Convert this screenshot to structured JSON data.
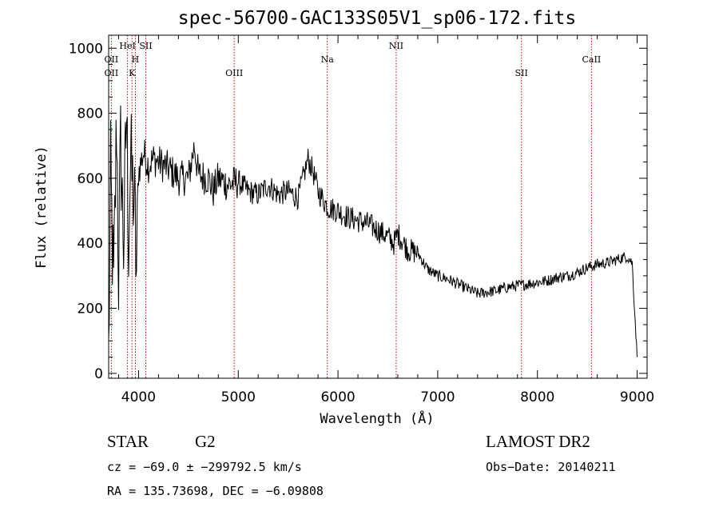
{
  "chart_data": {
    "type": "line",
    "title": "spec-56700-GAC133S05V1_sp06-172.fits",
    "xlabel": "Wavelength (Å)",
    "ylabel": "Flux (relative)",
    "xlim": [
      3700,
      9100
    ],
    "ylim": [
      -15,
      1040
    ],
    "x_ticks": [
      4000,
      5000,
      6000,
      7000,
      8000,
      9000
    ],
    "y_ticks": [
      0,
      200,
      400,
      600,
      800,
      1000
    ],
    "grid": false,
    "series": [
      {
        "x": [
          3700,
          3720,
          3750,
          3780,
          3800,
          3820,
          3850,
          3880,
          3900,
          3920,
          3940,
          3960,
          3980,
          4000,
          4050,
          4100,
          4150,
          4200,
          4300,
          4400,
          4500,
          4560,
          4600,
          4700,
          4750,
          4800,
          4900,
          5000,
          5100,
          5200,
          5300,
          5400,
          5500,
          5600,
          5650,
          5700,
          5750,
          5800,
          5900,
          6000,
          6100,
          6200,
          6300,
          6400,
          6500,
          6560,
          6600,
          6700,
          6800,
          6900,
          7000,
          7100,
          7200,
          7300,
          7400,
          7500,
          7600,
          7700,
          7800,
          7900,
          8000,
          8100,
          8200,
          8300,
          8400,
          8500,
          8600,
          8700,
          8800,
          8850,
          8900,
          8950,
          9000
        ],
        "y": [
          50,
          600,
          250,
          780,
          300,
          700,
          400,
          800,
          420,
          650,
          580,
          500,
          300,
          620,
          680,
          640,
          660,
          650,
          630,
          600,
          600,
          700,
          610,
          600,
          560,
          600,
          580,
          590,
          560,
          550,
          580,
          550,
          560,
          540,
          600,
          660,
          620,
          560,
          510,
          500,
          480,
          470,
          460,
          440,
          420,
          400,
          430,
          380,
          370,
          320,
          300,
          290,
          275,
          260,
          245,
          250,
          255,
          265,
          270,
          275,
          280,
          285,
          295,
          300,
          310,
          325,
          335,
          340,
          350,
          355,
          360,
          340,
          50
        ]
      }
    ],
    "spectral_lines": [
      {
        "label": "OII",
        "x": 3727,
        "row": 2
      },
      {
        "label": "OII",
        "x": 3727,
        "row": 3
      },
      {
        "label": "HeI",
        "x": 3889,
        "row": 1
      },
      {
        "label": "H",
        "x": 3968,
        "row": 2
      },
      {
        "label": "K",
        "x": 3934,
        "row": 3
      },
      {
        "label": "SII",
        "x": 4072,
        "row": 1
      },
      {
        "label": "OIII",
        "x": 4959,
        "row": 3
      },
      {
        "label": "Na",
        "x": 5893,
        "row": 2
      },
      {
        "label": "NII",
        "x": 6584,
        "row": 1
      },
      {
        "label": "SII",
        "x": 7840,
        "row": 3
      },
      {
        "label": "CaII",
        "x": 8542,
        "row": 2
      }
    ]
  },
  "info": {
    "object_type": "STAR",
    "subclass": "G2",
    "survey": "LAMOST DR2",
    "cz": "cz = −69.0 ± −299792.5 km/s",
    "obs_date": "Obs−Date: 20140211",
    "coords": "RA = 135.73698, DEC =  −6.09808"
  },
  "colors": {
    "spectrum": "#000000",
    "line_marker": "#cc0000",
    "axes": "#000000"
  }
}
